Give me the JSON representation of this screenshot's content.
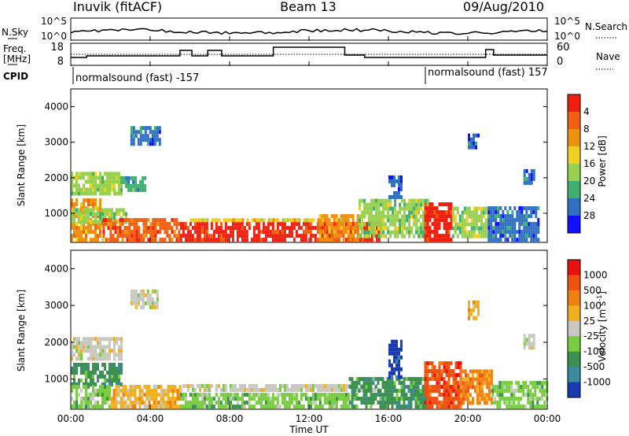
{
  "header": {
    "station": "Inuvik (fitACF)",
    "beam": "Beam 13",
    "date": "09/Aug/2010"
  },
  "sky_panel": {
    "left_label": "N.Sky",
    "right_label": "N.Search",
    "left_ticks": [
      "10^5",
      "10^0"
    ],
    "right_ticks": [
      "10^5",
      "10^0"
    ]
  },
  "freq_panel": {
    "left_label_top": "Freq.",
    "left_label_bottom": "[MHz]",
    "right_label": "Nave",
    "left_ticks": [
      "18",
      "8"
    ],
    "right_ticks": [
      "60",
      "0"
    ]
  },
  "cpid": {
    "label": "CPID",
    "segments": [
      {
        "text": "normalsound (fast) -157",
        "start_hour": 0
      },
      {
        "text": "normalsound (fast) 157",
        "start_hour": 18
      }
    ]
  },
  "x_axis": {
    "label": "Time UT",
    "ticks": [
      "00:00",
      "04:00",
      "08:00",
      "12:00",
      "16:00",
      "20:00",
      "00:00"
    ],
    "range_hours": [
      0,
      24
    ]
  },
  "chart_data": [
    {
      "type": "heatmap",
      "title": "",
      "xlabel": "Time UT",
      "ylabel": "Slant Range [km]",
      "xlim": [
        0,
        24
      ],
      "ylim": [
        180,
        4500
      ],
      "y_ticks": [
        "1000",
        "2000",
        "3000",
        "4000"
      ],
      "y_tick_values": [
        1000,
        2000,
        3000,
        4000
      ],
      "colorbar": {
        "label": "Power [dB]",
        "tick_labels": [
          "4",
          "8",
          "12",
          "16",
          "20",
          "24",
          "28"
        ],
        "colors": [
          "#1010ff",
          "#3070c0",
          "#40b070",
          "#98d050",
          "#f0d020",
          "#f09010",
          "#f06010",
          "#f02010"
        ]
      },
      "regions": [
        {
          "t0": 0.0,
          "t1": 1.6,
          "r0": 200,
          "r1": 1400,
          "c": 5
        },
        {
          "t0": 0.0,
          "t1": 2.5,
          "r0": 1500,
          "r1": 2100,
          "c": 3
        },
        {
          "t0": 0.0,
          "t1": 2.8,
          "r0": 700,
          "r1": 1100,
          "c": 3
        },
        {
          "t0": 1.6,
          "t1": 5.5,
          "r0": 200,
          "r1": 800,
          "c": 6
        },
        {
          "t0": 2.5,
          "t1": 3.8,
          "r0": 1600,
          "r1": 2000,
          "c": 2
        },
        {
          "t0": 3.0,
          "t1": 4.5,
          "r0": 2900,
          "r1": 3400,
          "c": 1
        },
        {
          "t0": 5.5,
          "t1": 15.5,
          "r0": 200,
          "r1": 700,
          "c": 7
        },
        {
          "t0": 6.0,
          "t1": 14.0,
          "r0": 750,
          "r1": 850,
          "c": 4
        },
        {
          "t0": 12.5,
          "t1": 14.5,
          "r0": 200,
          "r1": 900,
          "c": 5
        },
        {
          "t0": 14.5,
          "t1": 18.0,
          "r0": 300,
          "r1": 1400,
          "c": 3
        },
        {
          "t0": 16.0,
          "t1": 16.6,
          "r0": 1400,
          "r1": 2000,
          "c": 1
        },
        {
          "t0": 17.8,
          "t1": 19.2,
          "r0": 200,
          "r1": 1300,
          "c": 7
        },
        {
          "t0": 19.2,
          "t1": 21.0,
          "r0": 300,
          "r1": 1100,
          "c": 3
        },
        {
          "t0": 21.0,
          "t1": 23.6,
          "r0": 200,
          "r1": 1100,
          "c": 1
        },
        {
          "t0": 20.0,
          "t1": 20.5,
          "r0": 2800,
          "r1": 3200,
          "c": 1
        },
        {
          "t0": 22.8,
          "t1": 23.3,
          "r0": 1800,
          "r1": 2200,
          "c": 1
        }
      ]
    },
    {
      "type": "heatmap",
      "title": "",
      "xlabel": "Time UT",
      "ylabel": "Slant Range [km]",
      "xlim": [
        0,
        24
      ],
      "ylim": [
        180,
        4500
      ],
      "y_ticks": [
        "1000",
        "2000",
        "3000",
        "4000"
      ],
      "y_tick_values": [
        1000,
        2000,
        3000,
        4000
      ],
      "colorbar": {
        "label": "Velocity [m s-1]",
        "tick_labels": [
          "1000",
          "500",
          "100",
          "25",
          "-25",
          "-100",
          "-500",
          "-1000"
        ],
        "colors": [
          "#1a3cb0",
          "#3a8aa0",
          "#3c9050",
          "#78cc40",
          "#c8c8c0",
          "#f0b020",
          "#f08010",
          "#f05010",
          "#e81010"
        ]
      },
      "regions": [
        {
          "t0": 0.0,
          "t1": 2.6,
          "r0": 1500,
          "r1": 2100,
          "c": 4
        },
        {
          "t0": 0.0,
          "t1": 2.6,
          "r0": 800,
          "r1": 1400,
          "c": 2
        },
        {
          "t0": 0.0,
          "t1": 2.0,
          "r0": 200,
          "r1": 750,
          "c": 3
        },
        {
          "t0": 2.0,
          "t1": 5.5,
          "r0": 200,
          "r1": 800,
          "c": 5
        },
        {
          "t0": 5.5,
          "t1": 14.0,
          "r0": 200,
          "r1": 600,
          "c": 3
        },
        {
          "t0": 5.5,
          "t1": 15.5,
          "r0": 650,
          "r1": 850,
          "c": 4
        },
        {
          "t0": 3.0,
          "t1": 4.4,
          "r0": 2900,
          "r1": 3400,
          "c": 4
        },
        {
          "t0": 14.0,
          "t1": 18.0,
          "r0": 200,
          "r1": 1000,
          "c": 2
        },
        {
          "t0": 16.0,
          "t1": 16.6,
          "r0": 1000,
          "r1": 2000,
          "c": 0
        },
        {
          "t0": 17.8,
          "t1": 19.6,
          "r0": 200,
          "r1": 1400,
          "c": 7
        },
        {
          "t0": 19.6,
          "t1": 21.2,
          "r0": 300,
          "r1": 1200,
          "c": 6
        },
        {
          "t0": 21.2,
          "t1": 24.0,
          "r0": 200,
          "r1": 900,
          "c": 3
        },
        {
          "t0": 20.0,
          "t1": 20.5,
          "r0": 2600,
          "r1": 3100,
          "c": 5
        },
        {
          "t0": 22.8,
          "t1": 23.3,
          "r0": 1800,
          "r1": 2200,
          "c": 4
        }
      ]
    }
  ]
}
